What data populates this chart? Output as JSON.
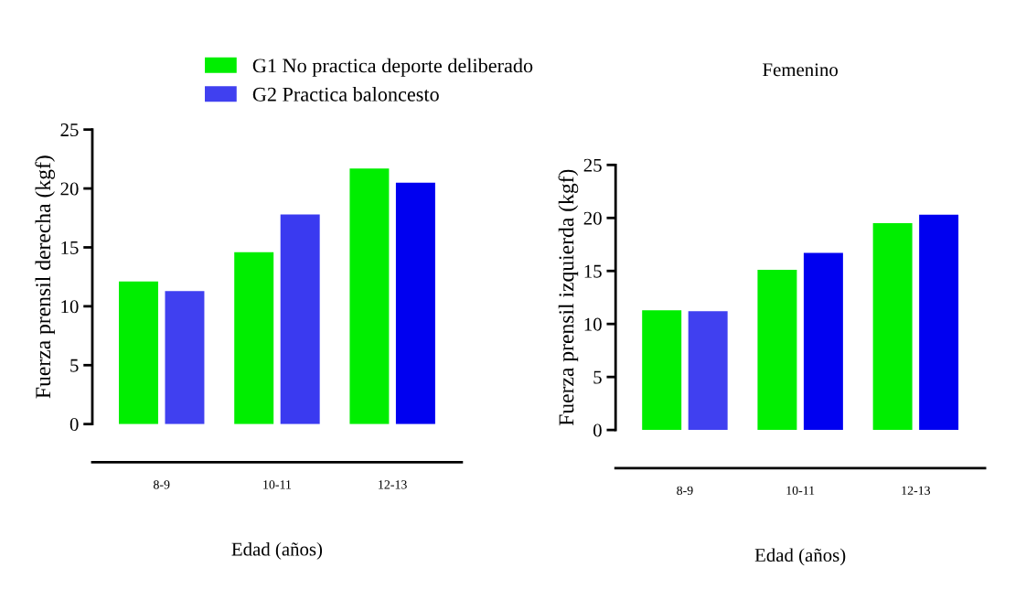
{
  "chart_data": [
    {
      "type": "bar",
      "xlabel": "Edad (años)",
      "ylabel": "Fuerza prensil derecha (kgf)",
      "categories": [
        "8-9",
        "10-11",
        "12-13"
      ],
      "ylim": [
        0,
        25
      ],
      "yticks": [
        0,
        5,
        10,
        15,
        20,
        25
      ],
      "legend": "top",
      "grid": false,
      "series": [
        {
          "name": "G1 No practica deporte deliberado",
          "color": "#00ee00",
          "values": [
            12.1,
            14.6,
            21.7
          ]
        },
        {
          "name": "G2 Practica baloncesto",
          "color": "#4040f0",
          "colors": [
            "#4040f0",
            "#3a3af0",
            "#0000f0"
          ],
          "values": [
            11.3,
            17.8,
            20.5
          ]
        }
      ]
    },
    {
      "type": "bar",
      "title": "Femenino",
      "xlabel": "Edad (años)",
      "ylabel": "Fuerza prensil izquierda (kgf)",
      "categories": [
        "8-9",
        "10-11",
        "12-13"
      ],
      "ylim": [
        0,
        25
      ],
      "yticks": [
        0,
        5,
        10,
        15,
        20,
        25
      ],
      "grid": false,
      "series": [
        {
          "color": "#00ee00",
          "values": [
            11.3,
            15.1,
            19.5
          ]
        },
        {
          "color": "#4040f0",
          "colors": [
            "#4040f0",
            "#0000f0",
            "#0000f0"
          ],
          "values": [
            11.2,
            16.7,
            20.3
          ]
        }
      ]
    }
  ]
}
